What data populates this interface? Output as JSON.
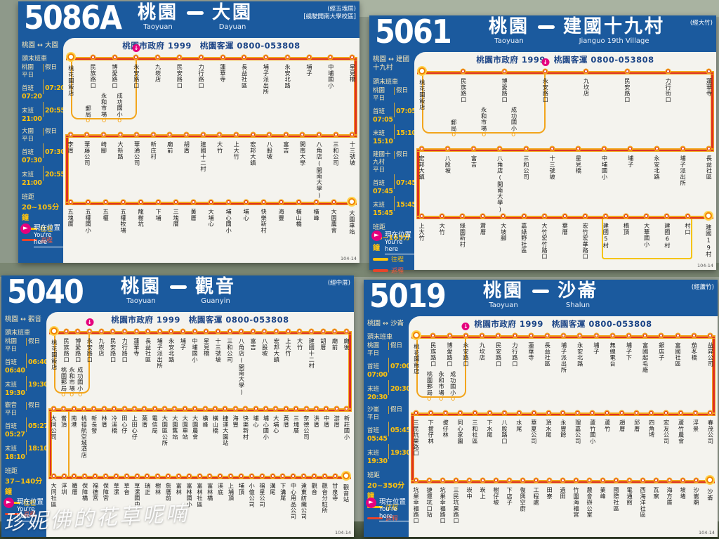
{
  "page": {
    "watermark": "珍妮佛的花草呢喃"
  },
  "shared": {
    "authority_line": "桃園市政府 1999　桃園客運 0800-053808",
    "labels": {
      "first_last": "頭末班車",
      "weekday": "平日",
      "holiday": "假日",
      "first": "首班",
      "last": "末班",
      "headway": "班距",
      "outbound": "往程",
      "return": "返程",
      "here_zh": "現在位置",
      "here_en": "You're here",
      "sheet_code": "104-14",
      "u_turn_icon": "↓",
      "here_arrow_icon": "►"
    },
    "colors": {
      "panel_blue": "#1b5a9e",
      "route_red": "#df3224",
      "route_casing_gold": "#f2a51c",
      "detour_yellow": "#f5c400",
      "time_gold": "#ffc20e",
      "marker_pink": "#e5007d"
    }
  },
  "panels": [
    {
      "number": "5086A",
      "from_zh": "桃園",
      "from_en": "Taoyuan",
      "to_zh": "大園",
      "to_en": "Dayuan",
      "via_notes": [
        "(經五塊厝)",
        "[繞駛開南大學校區]"
      ],
      "pair": "桃園 ↔ 大園",
      "schedule": [
        {
          "place": "桃園",
          "first": [
            "07:20",
            "07:20"
          ],
          "last": [
            "21:00",
            "20:55"
          ]
        },
        {
          "place": "大園",
          "first": [
            "07:30",
            "07:30"
          ],
          "last": [
            "21:00",
            "20:55"
          ]
        }
      ],
      "headway": "20~105分鐘",
      "rows": [
        {
          "start_terminal": true,
          "u_turn_index": 3,
          "detour": [
            "郵局",
            "永和市場",
            "成功國小"
          ],
          "stops": [
            "桃花園飯店",
            "民族路口",
            "博愛路口",
            "永安路口",
            "九崁店",
            "民安路口",
            "力行路口",
            "蓮華寺",
            "長益社區",
            "埔子派出所",
            "永安北路",
            "埔子",
            "中埔國小",
            "星見橋"
          ]
        },
        {
          "stops": [
            "李厝",
            "華藤公司",
            "崎腳",
            "大新路",
            "華通公司",
            "新庄村",
            "廟前",
            "胡厝",
            "建國十二村",
            "大竹",
            "上大竹",
            "宏邦大鎮",
            "八股坡",
            "富吉",
            "開南大學",
            "八角店(開南大學)",
            "三和公司",
            "十三號坡"
          ]
        },
        {
          "end_terminal": true,
          "stops": [
            "五塊厝",
            "五權國小",
            "五權",
            "五權牧場",
            "龍樹坑",
            "下埔",
            "三塊厝",
            "黃厝",
            "大埔心",
            "埔心國小",
            "埔心",
            "快樂新村",
            "海豐",
            "橫山橋",
            "橫峰",
            "大園農會",
            "大園車站"
          ]
        }
      ]
    },
    {
      "number": "5061",
      "from_zh": "桃園",
      "from_en": "Taoyuan",
      "to_zh": "建國十九村",
      "to_en": "Jianguo 19th Village",
      "via_notes": [
        "(經大竹)"
      ],
      "pair": "桃園 ↔ 建國十九村",
      "schedule": [
        {
          "place": "桃園",
          "first": [
            "07:05",
            "07:05"
          ],
          "last": [
            "15:10",
            "15:10"
          ]
        },
        {
          "place": "建國十九村",
          "first": [
            "07:45",
            "07:45"
          ],
          "last": [
            "15:45",
            "15:45"
          ]
        }
      ],
      "headway": "75~165分鐘",
      "rows": [
        {
          "start_terminal": true,
          "u_turn_index": 3,
          "detour": [
            "郵局",
            "永和市場",
            "成功國小"
          ],
          "stops": [
            "桃花園飯店",
            "民族路口",
            "博愛路口",
            "永安路口",
            "九坎店",
            "民安路口",
            "力行街口",
            "蓮華寺"
          ]
        },
        {
          "stops": [
            "宏邦大鎮",
            "八股坡",
            "富吉",
            "八角店(開南大學)",
            "三和公司",
            "十三號坡",
            "星見橋",
            "中埔國小",
            "埔子",
            "永安北路",
            "埔子派出所",
            "長益社區"
          ]
        },
        {
          "end_terminal": true,
          "loop_box": {
            "from": 9,
            "to": 13
          },
          "stops": [
            "上大竹",
            "大竹",
            "綠園新村",
            "蕭厝",
            "大坡腳",
            "嘉綠野社區",
            "大竹宏竹路口",
            "葉厝",
            "宏竹宏華路口",
            "建國5村",
            "橋頂",
            "大華國小",
            "建國6村",
            "村口",
            "建國19村"
          ]
        }
      ]
    },
    {
      "number": "5040",
      "from_zh": "桃園",
      "from_en": "Taoyuan",
      "to_zh": "觀音",
      "to_en": "Guanyin",
      "via_notes": [
        "(經中厝)"
      ],
      "pair": "桃園 ↔ 觀音",
      "left_loop_box": true,
      "schedule": [
        {
          "place": "桃園",
          "first": [
            "06:40",
            "06:40"
          ],
          "last": [
            "19:30",
            "19:30"
          ]
        },
        {
          "place": "觀音",
          "first": [
            "05:27",
            "05:27"
          ],
          "last": [
            "18:10",
            "18:10"
          ]
        }
      ],
      "headway": "37~140分鐘",
      "rows": [
        {
          "start_terminal": true,
          "u_turn_index": 3,
          "detour": [
            "桃園郵局",
            "永和市場",
            "成功國小"
          ],
          "stops": [
            "桃花園飯店",
            "民族路口",
            "博愛路口",
            "永安路口",
            "九崁店",
            "民安路口",
            "力行路口",
            "蓮華寺",
            "長益社區",
            "埔子派出所",
            "永安北路",
            "埔子",
            "中埔國小",
            "星見橋",
            "十三號坡",
            "三和公司",
            "八角店(開南大學)",
            "富吉",
            "八股坡",
            "宏邦大鎮",
            "上大竹",
            "大竹",
            "建國十二村",
            "胡厝",
            "廟前",
            "廟後"
          ]
        },
        {
          "stops": [
            "大同公司",
            "崙頂",
            "南港",
            "桃禧航空城酒店",
            "新長發",
            "林厝",
            "冷溪橋",
            "田心仔",
            "上田心仔",
            "葉厝",
            "電信局",
            "大園區公所",
            "大園舊站",
            "大園車站",
            "大園農會",
            "橫峰",
            "橫山橋",
            "捷運大園站",
            "海豐",
            "快樂新村",
            "埔心",
            "埔心國小",
            "大埔心",
            "黃厝",
            "三塊厝",
            "奈德公司",
            "洪厝",
            "中厝",
            "游厝",
            "新莊國小"
          ]
        },
        {
          "end_terminal": true,
          "stops": [
            "大同社區",
            "浮圳",
            "羅厝",
            "保障橋",
            "福德宮",
            "保障宮",
            "草漯",
            "草音",
            "草漯國中",
            "瑞正",
            "樹林",
            "詹厝前",
            "富林",
            "富林國小",
            "富林社區",
            "富林橋",
            "溪底",
            "上埔頂",
            "埔頂",
            "小億公司",
            "福星公司",
            "溝尾",
            "下溝尾",
            "中心用品公司",
            "遠東紡織公司",
            "觀音",
            "觀音分駐所",
            "甘泉寺",
            "觀音站"
          ]
        }
      ]
    },
    {
      "number": "5019",
      "from_zh": "桃園",
      "from_en": "Taoyuan",
      "to_zh": "沙崙",
      "to_en": "Shalun",
      "via_notes": [
        "(經蘆竹)"
      ],
      "pair": "桃園 ↔ 沙崙",
      "schedule": [
        {
          "place": "桃園",
          "first": [
            "07:00",
            "07:00"
          ],
          "last": [
            "20:30",
            "20:30"
          ]
        },
        {
          "place": "沙崙",
          "first": [
            "05:45",
            "05:45"
          ],
          "last": [
            "19:30",
            "19:30"
          ]
        }
      ],
      "headway": "20~350分鐘",
      "rows": [
        {
          "start_terminal": true,
          "u_turn_index": 3,
          "detour": [
            "桃園郵局",
            "永和市場",
            "成功國小"
          ],
          "stops": [
            "桃花園飯店",
            "民族路口",
            "博愛路口",
            "永安路口",
            "九坎店",
            "民安路口",
            "力行路口",
            "蓮華寺",
            "長益社區",
            "埔子派出所",
            "永安北路",
            "埔子",
            "無線電台",
            "埔子下",
            "富國起毛廠",
            "銀店子",
            "富國社區",
            "茄苳橋",
            "益昇公司"
          ]
        },
        {
          "stops": [
            "三民坑果路口",
            "下拔仔林",
            "拔仔林",
            "同心家園",
            "三和社區",
            "下水尾",
            "八股路口",
            "水尾",
            "華夏公司",
            "頂水尾",
            "永豐餘",
            "理嘉公司",
            "蘆竹國小",
            "蘆竹",
            "趙厝",
            "邱厝",
            "四角埤",
            "宏友公司",
            "蘆竹農會",
            "浮景",
            "春茂公司"
          ]
        },
        {
          "end_terminal": true,
          "stops": [
            "坑果幸福路口",
            "捷運坑口站",
            "坑果幸福路口",
            "三民坑果路口",
            "崁中",
            "崁上",
            "樹仔坡",
            "下店子",
            "復興空廚",
            "工程處",
            "田寮",
            "過田",
            "竹圍海福宮",
            "農會辦公室",
            "業峰",
            "國際社區",
            "電通館",
            "西海洋社區",
            "瓦窯",
            "海方厝",
            "坡堵",
            "沙崙廟",
            "沙崙"
          ]
        }
      ]
    }
  ]
}
